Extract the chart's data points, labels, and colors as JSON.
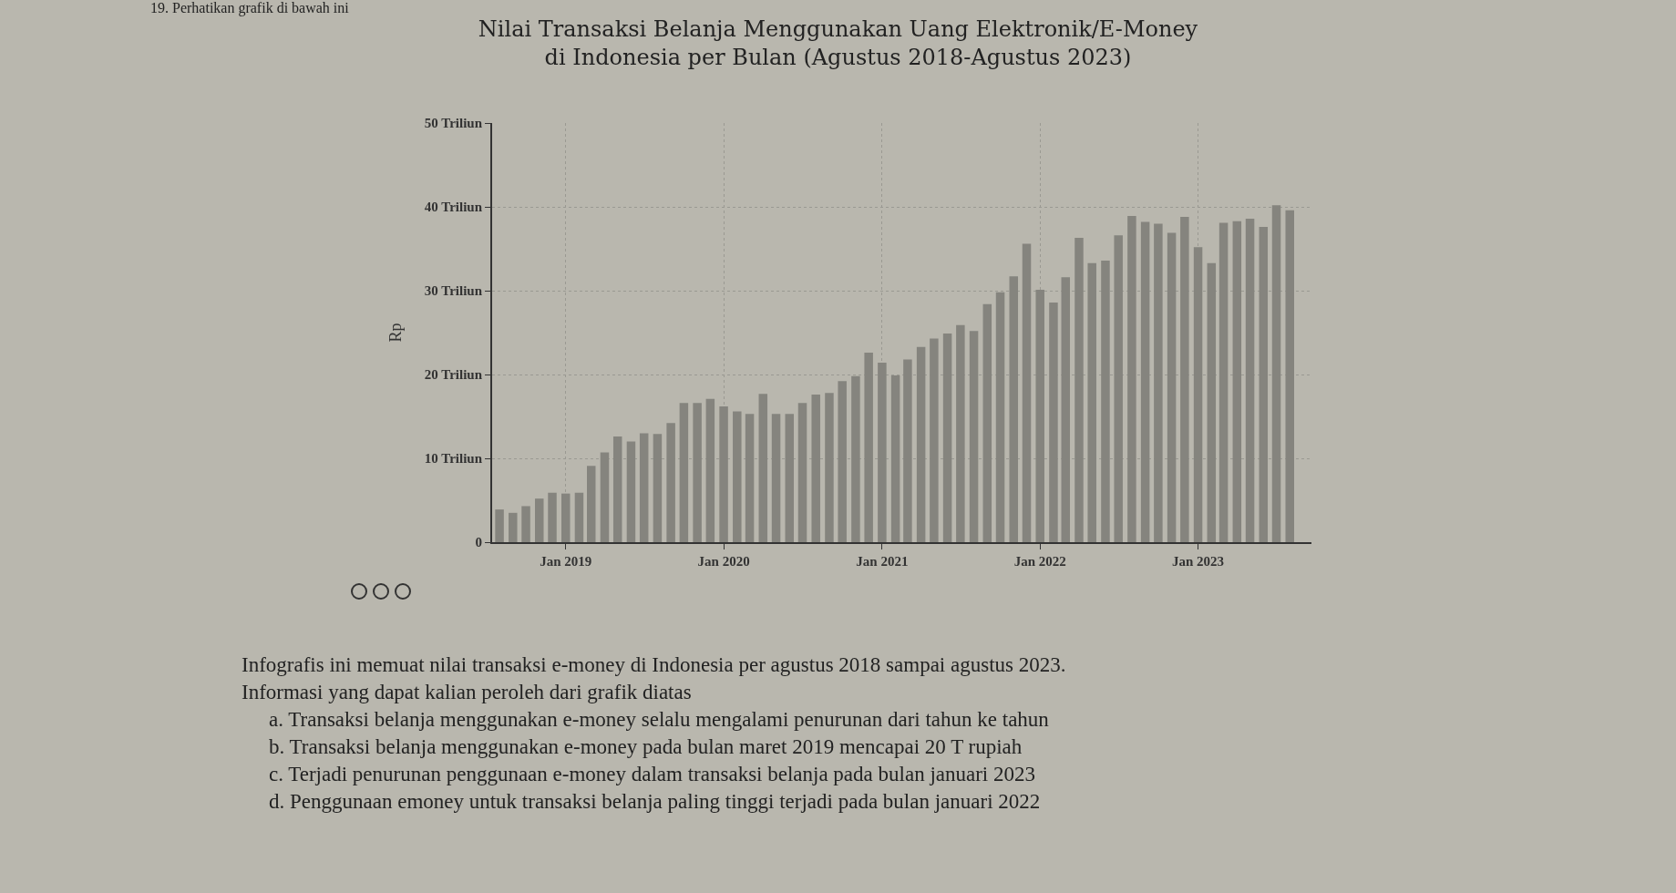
{
  "chart_data": {
    "type": "bar",
    "title": "Nilai Transaksi Belanja Menggunakan Uang Elektronik/E-Money\ndi Indonesia per Bulan (Agustus 2018-Agustus 2023)",
    "ylabel": "Rp",
    "x": [
      "2018-08",
      "2018-09",
      "2018-10",
      "2018-11",
      "2018-12",
      "2019-01",
      "2019-02",
      "2019-03",
      "2019-04",
      "2019-05",
      "2019-06",
      "2019-07",
      "2019-08",
      "2019-09",
      "2019-10",
      "2019-11",
      "2019-12",
      "2020-01",
      "2020-02",
      "2020-03",
      "2020-04",
      "2020-05",
      "2020-06",
      "2020-07",
      "2020-08",
      "2020-09",
      "2020-10",
      "2020-11",
      "2020-12",
      "2021-01",
      "2021-02",
      "2021-03",
      "2021-04",
      "2021-05",
      "2021-06",
      "2021-07",
      "2021-08",
      "2021-09",
      "2021-10",
      "2021-11",
      "2021-12",
      "2022-01",
      "2022-02",
      "2022-03",
      "2022-04",
      "2022-05",
      "2022-06",
      "2022-07",
      "2022-08",
      "2022-09",
      "2022-10",
      "2022-11",
      "2022-12",
      "2023-01",
      "2023-02",
      "2023-03",
      "2023-04",
      "2023-05",
      "2023-06",
      "2023-07",
      "2023-08"
    ],
    "values": [
      3.9,
      3.5,
      4.3,
      5.2,
      5.9,
      5.8,
      5.9,
      9.1,
      10.7,
      12.6,
      12.0,
      13.0,
      12.9,
      14.2,
      16.6,
      16.6,
      17.1,
      16.2,
      15.6,
      15.3,
      17.7,
      15.3,
      15.3,
      16.6,
      17.6,
      17.8,
      19.2,
      19.8,
      22.6,
      21.4,
      19.9,
      21.8,
      23.3,
      24.3,
      24.9,
      25.9,
      25.2,
      28.4,
      29.8,
      31.7,
      35.6,
      30.1,
      28.6,
      31.6,
      36.3,
      33.3,
      33.6,
      36.6,
      38.9,
      38.2,
      38.0,
      36.9,
      38.8,
      35.2,
      33.3,
      38.1,
      38.3,
      38.6,
      37.6,
      40.2,
      39.6
    ],
    "color": "#85847e",
    "xlim": [
      "2018-07-15",
      "2023-09-20"
    ],
    "xticks": [
      {
        "value": "2019-01",
        "label": "Jan 2019"
      },
      {
        "value": "2020-01",
        "label": "Jan 2020"
      },
      {
        "value": "2021-01",
        "label": "Jan 2021"
      },
      {
        "value": "2022-01",
        "label": "Jan 2022"
      },
      {
        "value": "2023-01",
        "label": "Jan 2023"
      }
    ],
    "ylim": [
      0,
      50
    ],
    "yticks": [
      0,
      {
        "value": 10,
        "label": "10 Triliun"
      },
      {
        "value": 20,
        "label": "20 Triliun"
      },
      {
        "value": 30,
        "label": "30 Triliun"
      },
      {
        "value": 40,
        "label": "40 Triliun"
      },
      {
        "value": 50,
        "label": "50 Triliun"
      }
    ],
    "grid": true,
    "legend": false,
    "annotations": [
      "19. Perhatikan grafik di bawah ini",
      "Infografis ini memuat nilai transaksi e-money di Indonesia per agustus 2018 sampai agustus 2023.",
      "Informasi yang dapat kalian peroleh dari grafik diatas",
      "a. Transaksi belanja menggunakan e-money selalu mengalami penurunan dari tahun ke tahun",
      "b. Transaksi belanja menggunakan e-money pada bulan maret 2019 mencapai 20 T rupiah",
      "c. Terjadi penurunan penggunaan e-money dalam transaksi belanja pada bulan januari 2023",
      "d. Penggunaan emoney untuk transaksi belanja paling tinggi terjadi pada bulan januari 2022"
    ]
  }
}
